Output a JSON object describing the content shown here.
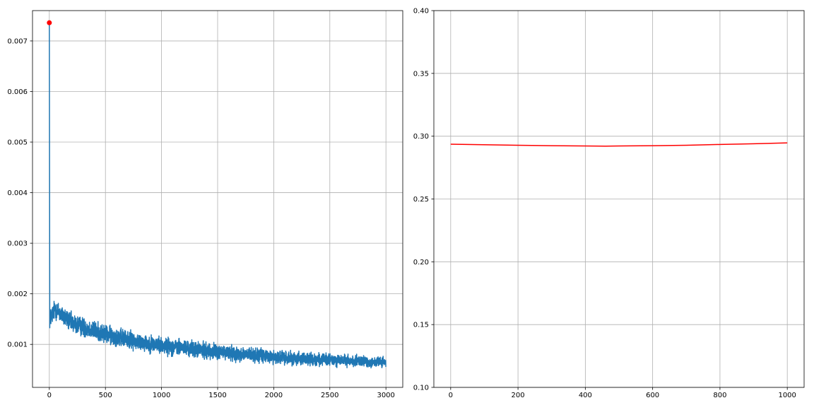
{
  "chart_data": [
    {
      "type": "line",
      "title": "",
      "xlabel": "",
      "ylabel": "",
      "xlim": [
        -150,
        3150
      ],
      "ylim": [
        0.00015,
        0.0076
      ],
      "xticks": [
        0,
        500,
        1000,
        1500,
        2000,
        2500,
        3000
      ],
      "xtick_labels": [
        "0",
        "500",
        "1000",
        "1500",
        "2000",
        "2500",
        "3000"
      ],
      "yticks": [
        0.001,
        0.002,
        0.003,
        0.004,
        0.005,
        0.006,
        0.007
      ],
      "ytick_labels": [
        "0.001",
        "0.002",
        "0.003",
        "0.004",
        "0.005",
        "0.006",
        "0.007"
      ],
      "grid": true,
      "series": [
        {
          "color": "#1f77b4",
          "trend_points": [
            [
              0,
              0.00735
            ],
            [
              4,
              0.0015
            ],
            [
              50,
              0.0017
            ],
            [
              200,
              0.00142
            ],
            [
              500,
              0.0012
            ],
            [
              800,
              0.00105
            ],
            [
              1000,
              0.00098
            ],
            [
              1500,
              0.00085
            ],
            [
              2000,
              0.00075
            ],
            [
              2500,
              0.00069
            ],
            [
              3000,
              0.00064
            ]
          ],
          "n_points": 3000,
          "noise": 0.00017
        }
      ],
      "highlight_point": {
        "x": 0,
        "y": 0.00736,
        "color": "#ff0000"
      }
    },
    {
      "type": "line",
      "title": "",
      "xlabel": "",
      "ylabel": "",
      "xlim": [
        -50,
        1050
      ],
      "ylim": [
        0.1,
        0.4
      ],
      "xticks": [
        0,
        200,
        400,
        600,
        800,
        1000
      ],
      "xtick_labels": [
        "0",
        "200",
        "400",
        "600",
        "800",
        "1000"
      ],
      "yticks": [
        0.1,
        0.15,
        0.2,
        0.25,
        0.3,
        0.35,
        0.4
      ],
      "ytick_labels": [
        "0.10",
        "0.15",
        "0.20",
        "0.25",
        "0.30",
        "0.35",
        "0.40"
      ],
      "grid": true,
      "series": [
        {
          "color": "#ff0000",
          "points": [
            [
              0,
              0.2936
            ],
            [
              100,
              0.2932
            ],
            [
              200,
              0.2928
            ],
            [
              300,
              0.2924
            ],
            [
              400,
              0.2922
            ],
            [
              460,
              0.2921
            ],
            [
              500,
              0.2922
            ],
            [
              600,
              0.2924
            ],
            [
              700,
              0.2928
            ],
            [
              800,
              0.2934
            ],
            [
              900,
              0.294
            ],
            [
              1000,
              0.2947
            ]
          ]
        }
      ]
    }
  ]
}
